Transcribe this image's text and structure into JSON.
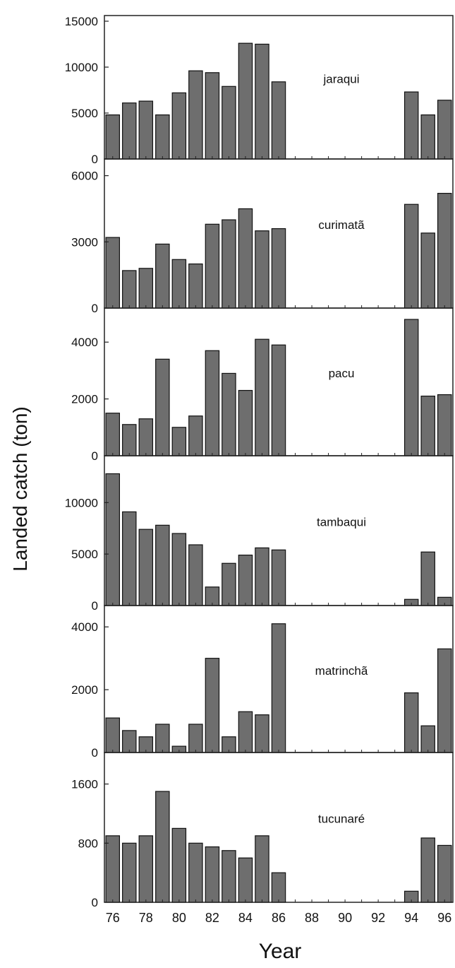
{
  "chart_data": {
    "type": "bar",
    "xlabel": "Year",
    "ylabel": "Landed catch (ton)",
    "x_tick_labels": [
      "76",
      "78",
      "80",
      "82",
      "84",
      "86",
      "88",
      "90",
      "92",
      "94",
      "96"
    ],
    "x_ticks": [
      76,
      78,
      80,
      82,
      84,
      86,
      88,
      90,
      92,
      94,
      96
    ],
    "years": [
      76,
      77,
      78,
      79,
      80,
      81,
      82,
      83,
      84,
      85,
      86,
      87,
      88,
      89,
      90,
      91,
      92,
      93,
      94,
      95,
      96
    ],
    "bar_color": "#6e6e6e",
    "panels": [
      {
        "label": "jaraqui",
        "ylim": [
          0,
          15000
        ],
        "yticks": [
          0,
          5000,
          10000,
          15000
        ],
        "ytick_labels": [
          "0",
          "5000",
          "10000",
          "15000"
        ],
        "values": [
          4800,
          6100,
          6300,
          4800,
          7200,
          9600,
          9400,
          7900,
          12600,
          12500,
          8400,
          null,
          null,
          null,
          null,
          null,
          null,
          null,
          7300,
          4800,
          6400
        ]
      },
      {
        "label": "curimatã",
        "ylim": [
          0,
          6500
        ],
        "yticks": [
          0,
          3000,
          6000
        ],
        "ytick_labels": [
          "0",
          "3000",
          "6000"
        ],
        "values": [
          3200,
          1700,
          1800,
          2900,
          2200,
          2000,
          3800,
          4000,
          4500,
          3500,
          3600,
          null,
          null,
          null,
          null,
          null,
          null,
          null,
          4700,
          3400,
          5200
        ]
      },
      {
        "label": "pacu",
        "ylim": [
          0,
          5000
        ],
        "yticks": [
          0,
          2000,
          4000
        ],
        "ytick_labels": [
          "0",
          "2000",
          "4000"
        ],
        "values": [
          1500,
          1100,
          1300,
          3400,
          1000,
          1400,
          3700,
          2900,
          2300,
          4100,
          3900,
          null,
          null,
          null,
          null,
          null,
          null,
          null,
          4800,
          2100,
          2150
        ]
      },
      {
        "label": "tambaqui",
        "ylim": [
          0,
          14000
        ],
        "yticks": [
          0,
          5000,
          10000
        ],
        "ytick_labels": [
          "0",
          "5000",
          "10000"
        ],
        "values": [
          12800,
          9100,
          7400,
          7800,
          7000,
          5900,
          1800,
          4100,
          4900,
          5600,
          5400,
          null,
          null,
          null,
          null,
          null,
          null,
          null,
          600,
          5200,
          800
        ]
      },
      {
        "label": "matrinchã",
        "ylim": [
          0,
          4500
        ],
        "yticks": [
          0,
          2000,
          4000
        ],
        "ytick_labels": [
          "0",
          "2000",
          "4000"
        ],
        "values": [
          1100,
          700,
          500,
          900,
          200,
          900,
          3000,
          500,
          1300,
          1200,
          4100,
          null,
          null,
          null,
          null,
          null,
          null,
          null,
          1900,
          850,
          3300
        ]
      },
      {
        "label": "tucunaré",
        "ylim": [
          0,
          1950
        ],
        "yticks": [
          0,
          800,
          1600
        ],
        "ytick_labels": [
          "0",
          "800",
          "1600"
        ],
        "values": [
          900,
          800,
          900,
          1500,
          1000,
          800,
          750,
          700,
          600,
          900,
          400,
          null,
          null,
          null,
          null,
          null,
          null,
          null,
          150,
          870,
          770
        ]
      }
    ]
  }
}
